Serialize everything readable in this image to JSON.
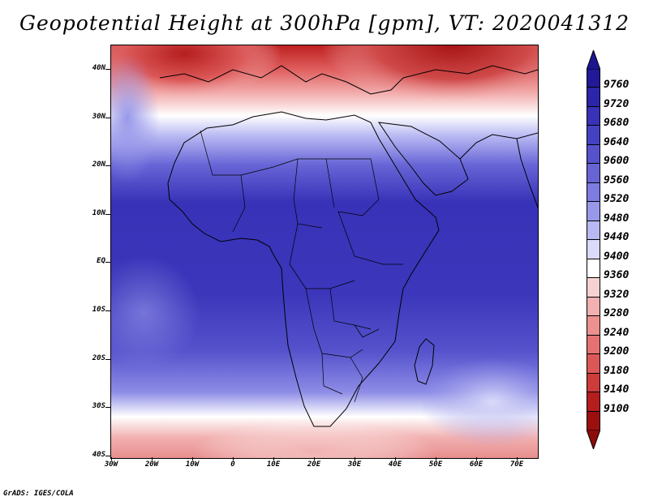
{
  "title": "Geopotential Height at 300hPa [gpm], VT: 2020041312",
  "footer": "GrADS: IGES/COLA",
  "lat_labels": [
    "40N",
    "30N",
    "20N",
    "10N",
    "EQ",
    "10S",
    "20S",
    "30S",
    "40S"
  ],
  "lon_labels": [
    "30W",
    "20W",
    "10W",
    "0",
    "10E",
    "20E",
    "30E",
    "40E",
    "50E",
    "60E",
    "70E"
  ],
  "colorbar": {
    "labels": [
      "9760",
      "9720",
      "9680",
      "9640",
      "9600",
      "9560",
      "9520",
      "9480",
      "9440",
      "9400",
      "9360",
      "9320",
      "9280",
      "9240",
      "9200",
      "9180",
      "9140",
      "9100"
    ],
    "colors": [
      "#221999",
      "#2b25a9",
      "#3832b8",
      "#4541c3",
      "#5552cc",
      "#6765d6",
      "#7d7ce0",
      "#9898ea",
      "#b8b8f3",
      "#dadaf9",
      "#ffffff",
      "#f7d2d2",
      "#f2b1b1",
      "#ec9090",
      "#e47272",
      "#dc5858",
      "#cd3b3b",
      "#b51e1e",
      "#9b0f0f"
    ]
  },
  "chart_data": {
    "type": "heatmap",
    "title": "Geopotential Height at 300hPa [gpm], VT: 2020041312",
    "variable": "Geopotential Height",
    "level": "300hPa",
    "units": "gpm",
    "valid_time": "2020041312",
    "lon_range": [
      -30,
      75
    ],
    "lat_range": [
      -40,
      45
    ],
    "levels": [
      9100,
      9140,
      9180,
      9200,
      9240,
      9280,
      9320,
      9360,
      9400,
      9440,
      9480,
      9520,
      9560,
      9600,
      9640,
      9680,
      9720,
      9760
    ]
  }
}
